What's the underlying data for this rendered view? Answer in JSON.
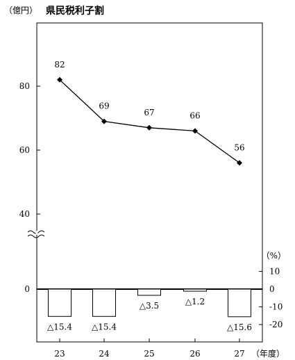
{
  "header": {
    "unit_label": "（億円）",
    "title": "県民税利子割"
  },
  "chart_data": [
    {
      "type": "line",
      "title": "県民税利子割",
      "ylabel": "（億円）",
      "categories": [
        "23",
        "24",
        "25",
        "26",
        "27"
      ],
      "values": [
        82,
        69,
        67,
        66,
        56
      ],
      "data_labels": [
        "82",
        "69",
        "67",
        "66",
        "56"
      ],
      "yticks": [
        "80",
        "60",
        "40",
        "0"
      ],
      "ylim": [
        36,
        92
      ],
      "axis_break": true,
      "marker": "diamond",
      "color": "#000000",
      "grid": false
    },
    {
      "type": "bar",
      "ylabel": "（%）",
      "categories": [
        "23",
        "24",
        "25",
        "26",
        "27"
      ],
      "values": [
        -15.4,
        -15.4,
        -3.5,
        -1.2,
        -15.6
      ],
      "data_labels": [
        "△15.4",
        "△15.4",
        "△3.5",
        "△1.2",
        "△15.6"
      ],
      "yticks": [
        "10",
        "0",
        "-10",
        "-20"
      ],
      "ylim": [
        -20,
        10
      ],
      "bar_fill": "#ffffff",
      "bar_stroke": "#000000",
      "grid": false
    }
  ],
  "xaxis": {
    "ticks": [
      "23",
      "24",
      "25",
      "26",
      "27"
    ],
    "unit_label": "（年度）"
  }
}
